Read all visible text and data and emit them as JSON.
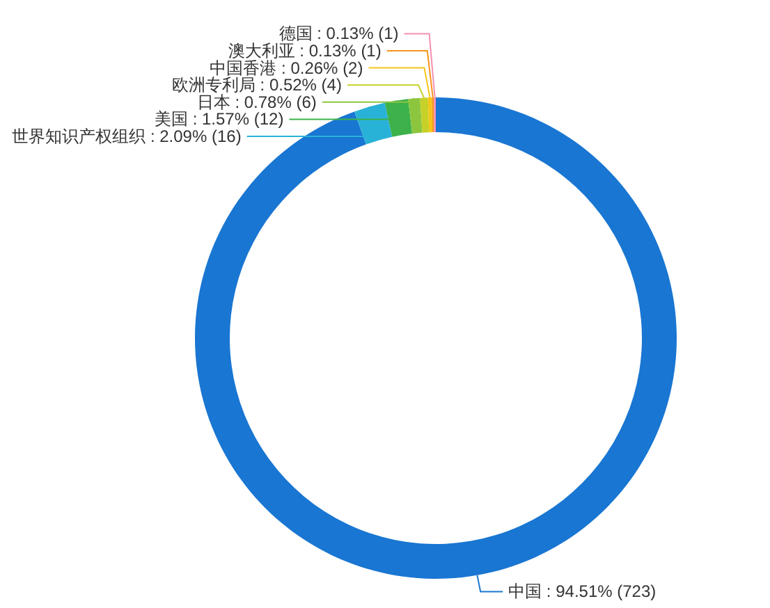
{
  "chart_data": {
    "type": "donut",
    "categories": [
      "中国",
      "世界知识产权组织",
      "美国",
      "日本",
      "欧洲专利局",
      "中国香港",
      "澳大利亚",
      "德国"
    ],
    "values": [
      723,
      16,
      12,
      6,
      4,
      2,
      1,
      1
    ],
    "value_labels": [
      "94.51% (723)",
      "2.09% (16)",
      "1.57% (12)",
      "0.78% (6)",
      "0.52% (4)",
      "0.26% (2)",
      "0.13% (1)",
      "0.13% (1)"
    ],
    "colors": [
      "#1976d2",
      "#29b2d8",
      "#3db14a",
      "#8cc63f",
      "#c5d128",
      "#f5c518",
      "#f7941d",
      "#f48fb1"
    ]
  }
}
